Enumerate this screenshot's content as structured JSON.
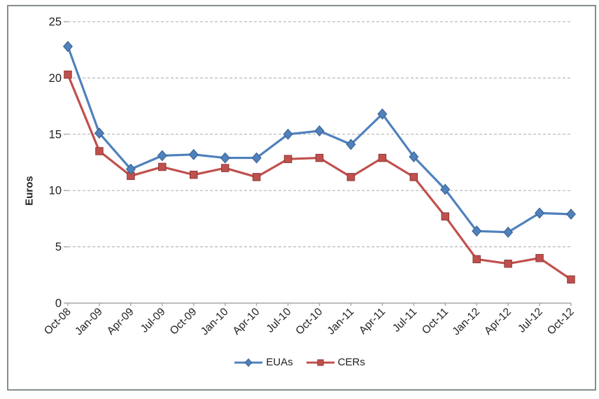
{
  "chart_data": {
    "type": "line",
    "title": "",
    "xlabel": "",
    "ylabel": "Euros",
    "ylim": [
      0,
      25
    ],
    "yticks": [
      0,
      5,
      10,
      15,
      20,
      25
    ],
    "grid": "horizontal-dashed",
    "legend_position": "bottom-center",
    "categories": [
      "Oct-08",
      "Jan-09",
      "Apr-09",
      "Jul-09",
      "Oct-09",
      "Jan-10",
      "Apr-10",
      "Jul-10",
      "Oct-10",
      "Jan-11",
      "Apr-11",
      "Jul-11",
      "Oct-11",
      "Jan-12",
      "Apr-12",
      "Jul-12",
      "Oct-12"
    ],
    "series": [
      {
        "name": "EUAs",
        "marker": "diamond",
        "color": "#4f81bd",
        "values": [
          22.8,
          15.1,
          11.9,
          13.1,
          13.2,
          12.9,
          12.9,
          15.0,
          15.3,
          14.1,
          16.8,
          13.0,
          10.1,
          6.4,
          6.3,
          8.0,
          7.9
        ]
      },
      {
        "name": "CERs",
        "marker": "square",
        "color": "#c0504d",
        "values": [
          20.3,
          13.5,
          11.3,
          12.1,
          11.4,
          12.0,
          11.2,
          12.8,
          12.9,
          11.2,
          12.9,
          11.2,
          7.7,
          3.9,
          3.5,
          4.0,
          2.1
        ]
      }
    ]
  },
  "colors": {
    "background": "#ffffff",
    "frame_border": "#839089",
    "gridline": "#a8a8a8",
    "axis": "#a6a6a6",
    "text": "#1f1f1f"
  }
}
